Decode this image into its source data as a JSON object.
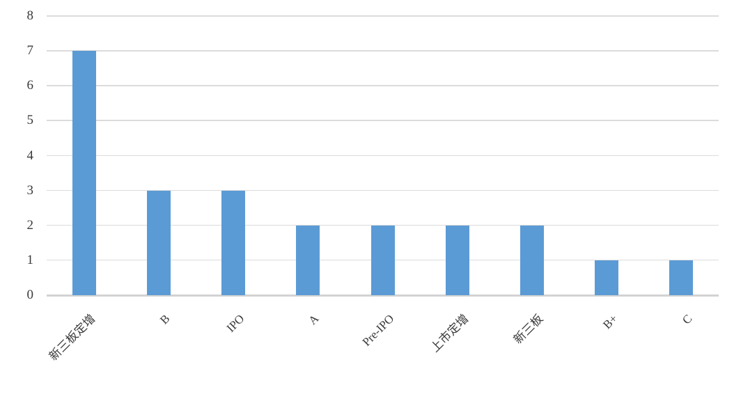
{
  "chart_data": {
    "type": "bar",
    "title": "",
    "xlabel": "",
    "ylabel": "",
    "categories": [
      "新三板定增",
      "B",
      "IPO",
      "A",
      "Pre-IPO",
      "上市定增",
      "新三板",
      "B+",
      "C"
    ],
    "values": [
      7,
      3,
      3,
      2,
      2,
      2,
      2,
      1,
      1
    ],
    "ylim": [
      0,
      8
    ],
    "yticks": [
      0,
      1,
      2,
      3,
      4,
      5,
      6,
      7,
      8
    ],
    "grid": true,
    "legend": "none",
    "data_labels": true,
    "bar_color": "#5b9bd5",
    "gridline_color": "#dbdbdb",
    "axis_line_color": "#d2d2d2",
    "text_color": "#3a3a3a"
  }
}
